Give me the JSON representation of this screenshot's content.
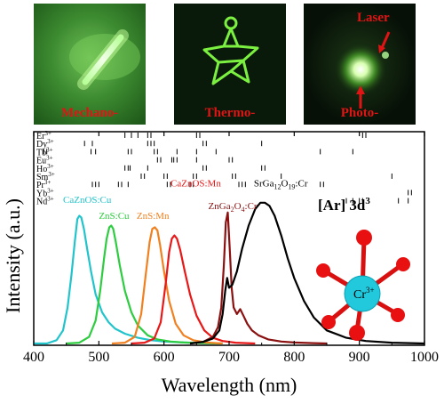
{
  "photos": [
    {
      "caption": "Mechano-",
      "icon": "glowing-rod"
    },
    {
      "caption": "Thermo-",
      "icon": "glowing-star-outline"
    },
    {
      "caption": "Photo-",
      "icon": "glowing-spot",
      "annotation": "Laser"
    }
  ],
  "inset": {
    "title_base": "[Ar] 3d",
    "title_sup": "3",
    "center_label_base": "Cr",
    "center_label_sup": "3+",
    "colors": {
      "center": "#1fd0e0",
      "ligand": "#e01010"
    }
  },
  "chart_data": {
    "type": "line",
    "title": "",
    "xlabel": "Wavelength (nm)",
    "ylabel": "Intensity (a.u.)",
    "xlim": [
      400,
      1000
    ],
    "xticks": [
      400,
      500,
      600,
      700,
      800,
      900,
      1000
    ],
    "ion_lines": [
      {
        "base": "Er",
        "sup": "3+",
        "x": [
          540,
          550,
          560,
          575,
          580,
          650,
          655,
          905,
          910
        ]
      },
      {
        "base": "Dy",
        "sup": "3+",
        "x": [
          478,
          490,
          575,
          580,
          585,
          660,
          665,
          750
        ]
      },
      {
        "base": "Tb",
        "sup": "3+",
        "x": [
          415,
          420,
          488,
          495,
          545,
          550,
          585,
          590,
          620,
          650,
          680,
          840,
          890
        ]
      },
      {
        "base": "Eu",
        "sup": "3+",
        "x": [
          590,
          595,
          612,
          615,
          620,
          650,
          700,
          705
        ]
      },
      {
        "base": "Ho",
        "sup": "3+",
        "x": [
          540,
          545,
          548,
          575,
          660,
          665,
          750,
          755
        ]
      },
      {
        "base": "Sm",
        "sup": "3+",
        "x": [
          565,
          570,
          600,
          605,
          645,
          650,
          705,
          710,
          780,
          950
        ]
      },
      {
        "base": "Pr",
        "sup": "3+",
        "x": [
          490,
          495,
          500,
          530,
          535,
          545,
          605,
          610,
          640,
          645,
          715,
          720,
          725,
          840,
          845
        ]
      },
      {
        "base": "Yb",
        "sup": "3+",
        "x": [
          975,
          980
        ]
      },
      {
        "base": "Nd",
        "sup": "3+",
        "x": [
          880,
          890,
          900,
          905,
          960,
          975
        ]
      }
    ],
    "series": [
      {
        "name": "CaZnOS:Cu",
        "color": "#22c4cc",
        "label_at": [
          445,
          0.86
        ],
        "x": [
          400,
          420,
          435,
          445,
          452,
          458,
          463,
          467,
          470,
          473,
          477,
          482,
          488,
          495,
          505,
          515,
          525,
          540,
          560,
          580,
          600,
          620,
          640,
          660,
          680
        ],
        "y": [
          0.0,
          0.0,
          0.02,
          0.08,
          0.22,
          0.42,
          0.62,
          0.76,
          0.78,
          0.77,
          0.7,
          0.58,
          0.44,
          0.3,
          0.19,
          0.13,
          0.09,
          0.06,
          0.035,
          0.02,
          0.012,
          0.008,
          0.005,
          0.003,
          0.0
        ]
      },
      {
        "name": "ZnS:Cu",
        "color": "#2ecc40",
        "label_at": [
          500,
          0.76
        ],
        "x": [
          450,
          470,
          485,
          495,
          502,
          508,
          512,
          516,
          519,
          522,
          526,
          532,
          540,
          550,
          560,
          575,
          590,
          610,
          630,
          660,
          690
        ],
        "y": [
          0.0,
          0.005,
          0.04,
          0.14,
          0.32,
          0.52,
          0.64,
          0.71,
          0.72,
          0.7,
          0.62,
          0.48,
          0.32,
          0.19,
          0.11,
          0.05,
          0.025,
          0.012,
          0.006,
          0.002,
          0.0
        ]
      },
      {
        "name": "ZnS:Mn",
        "color": "#f08020",
        "label_at": [
          558,
          0.76
        ],
        "x": [
          520,
          540,
          555,
          565,
          572,
          578,
          582,
          586,
          590,
          594,
          600,
          608,
          618,
          630,
          645,
          665,
          690
        ],
        "y": [
          0.0,
          0.005,
          0.04,
          0.18,
          0.42,
          0.62,
          0.7,
          0.71,
          0.69,
          0.6,
          0.44,
          0.26,
          0.12,
          0.05,
          0.02,
          0.006,
          0.0
        ]
      },
      {
        "name": "CaZnOS:Mn",
        "color": "#e81818",
        "label_at": [
          610,
          0.96
        ],
        "x": [
          550,
          570,
          585,
          595,
          603,
          608,
          612,
          616,
          620,
          625,
          632,
          640,
          650,
          662,
          675,
          690,
          710,
          740
        ],
        "y": [
          0.0,
          0.005,
          0.03,
          0.13,
          0.38,
          0.56,
          0.64,
          0.66,
          0.64,
          0.57,
          0.44,
          0.3,
          0.17,
          0.08,
          0.035,
          0.015,
          0.005,
          0.0
        ]
      },
      {
        "name": "ZnGa2O4:Cr",
        "color": "#8b1010",
        "label_at": [
          668,
          0.82
        ],
        "x": [
          640,
          660,
          675,
          683,
          688,
          692,
          695,
          698,
          701,
          704,
          707,
          712,
          717,
          722,
          728,
          735,
          745,
          760,
          780,
          800,
          830,
          850
        ],
        "y": [
          0.0,
          0.01,
          0.04,
          0.1,
          0.22,
          0.48,
          0.74,
          0.8,
          0.58,
          0.34,
          0.22,
          0.18,
          0.21,
          0.17,
          0.12,
          0.08,
          0.05,
          0.025,
          0.012,
          0.006,
          0.002,
          0.0
        ]
      },
      {
        "name": "SrGa12O19:Cr",
        "color": "#000000",
        "label_at": [
          738,
          0.96
        ],
        "x": [
          640,
          660,
          675,
          685,
          690,
          694,
          697,
          700,
          705,
          712,
          720,
          730,
          740,
          748,
          755,
          762,
          770,
          780,
          790,
          800,
          815,
          830,
          850,
          880,
          910,
          950,
          1000
        ],
        "y": [
          0.0,
          0.01,
          0.03,
          0.08,
          0.18,
          0.32,
          0.4,
          0.34,
          0.36,
          0.44,
          0.58,
          0.72,
          0.82,
          0.86,
          0.86,
          0.84,
          0.78,
          0.66,
          0.52,
          0.4,
          0.26,
          0.16,
          0.08,
          0.035,
          0.015,
          0.005,
          0.0
        ]
      }
    ]
  }
}
